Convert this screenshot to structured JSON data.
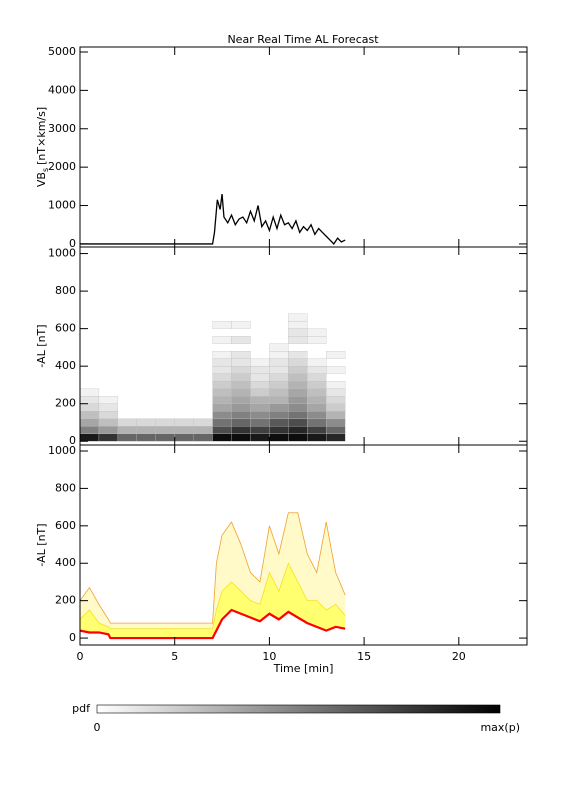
{
  "title": "Near Real Time AL Forecast",
  "chart_data": [
    {
      "type": "line",
      "ylabel": "VB",
      "ylabel_sub": "s",
      "ylabel_unit": "[nT×km/s]",
      "color": "#000000",
      "xlim": [
        0,
        23.6
      ],
      "xticks": [
        0,
        5,
        10,
        15,
        20
      ],
      "ylim": [
        -80,
        5130
      ],
      "yticks": [
        0,
        1000,
        2000,
        3000,
        4000,
        5000
      ],
      "x": [
        0,
        7.0,
        7.1,
        7.25,
        7.4,
        7.5,
        7.6,
        7.8,
        8.0,
        8.2,
        8.4,
        8.6,
        8.8,
        9.0,
        9.2,
        9.4,
        9.6,
        9.8,
        10.0,
        10.2,
        10.4,
        10.6,
        10.8,
        11.0,
        11.2,
        11.4,
        11.6,
        11.8,
        12.0,
        12.2,
        12.4,
        12.6,
        12.8,
        13.0,
        13.2,
        13.4,
        13.6,
        13.8,
        14.0
      ],
      "values": [
        0,
        0,
        300,
        1150,
        900,
        1300,
        700,
        550,
        750,
        500,
        650,
        700,
        550,
        850,
        600,
        1000,
        450,
        600,
        350,
        700,
        400,
        750,
        500,
        550,
        400,
        600,
        300,
        450,
        350,
        500,
        250,
        400,
        300,
        200,
        100,
        0,
        150,
        50,
        100
      ]
    },
    {
      "type": "heatmap",
      "ylabel": "-AL [nT]",
      "xlim": [
        0,
        23.6
      ],
      "xticks": [
        0,
        5,
        10,
        15,
        20
      ],
      "ylim": [
        -20,
        1035
      ],
      "yticks": [
        0,
        200,
        400,
        600,
        800,
        1000
      ],
      "cells": [
        [
          0,
          0,
          0.9
        ],
        [
          0,
          40,
          0.5
        ],
        [
          0,
          80,
          0.35
        ],
        [
          0,
          120,
          0.25
        ],
        [
          0,
          160,
          0.15
        ],
        [
          0,
          200,
          0.1
        ],
        [
          0,
          240,
          0.05
        ],
        [
          1,
          0,
          0.8
        ],
        [
          1,
          40,
          0.4
        ],
        [
          1,
          80,
          0.25
        ],
        [
          1,
          120,
          0.15
        ],
        [
          1,
          160,
          0.1
        ],
        [
          1,
          200,
          0.05
        ],
        [
          2,
          0,
          0.6
        ],
        [
          2,
          40,
          0.3
        ],
        [
          2,
          80,
          0.15
        ],
        [
          3,
          0,
          0.6
        ],
        [
          3,
          40,
          0.3
        ],
        [
          3,
          80,
          0.15
        ],
        [
          4,
          0,
          0.6
        ],
        [
          4,
          40,
          0.3
        ],
        [
          4,
          80,
          0.15
        ],
        [
          5,
          0,
          0.6
        ],
        [
          5,
          40,
          0.3
        ],
        [
          5,
          80,
          0.15
        ],
        [
          6,
          0,
          0.6
        ],
        [
          6,
          40,
          0.3
        ],
        [
          6,
          80,
          0.15
        ],
        [
          7,
          0,
          0.95
        ],
        [
          7,
          40,
          0.7
        ],
        [
          7,
          80,
          0.55
        ],
        [
          7,
          120,
          0.45
        ],
        [
          7,
          160,
          0.35
        ],
        [
          7,
          200,
          0.3
        ],
        [
          7,
          240,
          0.25
        ],
        [
          7,
          280,
          0.2
        ],
        [
          7,
          320,
          0.15
        ],
        [
          7,
          360,
          0.1
        ],
        [
          7,
          400,
          0.1
        ],
        [
          7,
          440,
          0.05
        ],
        [
          7,
          520,
          0.05
        ],
        [
          7,
          600,
          0.05
        ],
        [
          8,
          0,
          0.95
        ],
        [
          8,
          40,
          0.8
        ],
        [
          8,
          80,
          0.6
        ],
        [
          8,
          120,
          0.5
        ],
        [
          8,
          160,
          0.4
        ],
        [
          8,
          200,
          0.35
        ],
        [
          8,
          240,
          0.3
        ],
        [
          8,
          280,
          0.25
        ],
        [
          8,
          320,
          0.2
        ],
        [
          8,
          360,
          0.15
        ],
        [
          8,
          400,
          0.1
        ],
        [
          8,
          440,
          0.1
        ],
        [
          8,
          520,
          0.1
        ],
        [
          8,
          600,
          0.05
        ],
        [
          9,
          0,
          0.9
        ],
        [
          9,
          40,
          0.75
        ],
        [
          9,
          80,
          0.55
        ],
        [
          9,
          120,
          0.45
        ],
        [
          9,
          160,
          0.35
        ],
        [
          9,
          200,
          0.3
        ],
        [
          9,
          240,
          0.2
        ],
        [
          9,
          280,
          0.15
        ],
        [
          9,
          320,
          0.1
        ],
        [
          9,
          360,
          0.1
        ],
        [
          9,
          400,
          0.05
        ],
        [
          10,
          0,
          0.95
        ],
        [
          10,
          40,
          0.8
        ],
        [
          10,
          80,
          0.65
        ],
        [
          10,
          120,
          0.5
        ],
        [
          10,
          160,
          0.4
        ],
        [
          10,
          200,
          0.3
        ],
        [
          10,
          240,
          0.25
        ],
        [
          10,
          280,
          0.2
        ],
        [
          10,
          320,
          0.15
        ],
        [
          10,
          360,
          0.1
        ],
        [
          10,
          400,
          0.1
        ],
        [
          10,
          440,
          0.05
        ],
        [
          10,
          480,
          0.05
        ],
        [
          11,
          0,
          0.95
        ],
        [
          11,
          40,
          0.85
        ],
        [
          11,
          80,
          0.7
        ],
        [
          11,
          120,
          0.55
        ],
        [
          11,
          160,
          0.45
        ],
        [
          11,
          200,
          0.4
        ],
        [
          11,
          240,
          0.35
        ],
        [
          11,
          280,
          0.3
        ],
        [
          11,
          320,
          0.25
        ],
        [
          11,
          360,
          0.2
        ],
        [
          11,
          400,
          0.15
        ],
        [
          11,
          440,
          0.1
        ],
        [
          11,
          520,
          0.1
        ],
        [
          11,
          560,
          0.1
        ],
        [
          11,
          600,
          0.05
        ],
        [
          11,
          640,
          0.05
        ],
        [
          12,
          0,
          0.9
        ],
        [
          12,
          40,
          0.75
        ],
        [
          12,
          80,
          0.55
        ],
        [
          12,
          120,
          0.45
        ],
        [
          12,
          160,
          0.35
        ],
        [
          12,
          200,
          0.3
        ],
        [
          12,
          240,
          0.25
        ],
        [
          12,
          280,
          0.2
        ],
        [
          12,
          320,
          0.15
        ],
        [
          12,
          360,
          0.1
        ],
        [
          12,
          400,
          0.05
        ],
        [
          12,
          520,
          0.05
        ],
        [
          12,
          560,
          0.05
        ],
        [
          13,
          0,
          0.85
        ],
        [
          13,
          40,
          0.6
        ],
        [
          13,
          80,
          0.45
        ],
        [
          13,
          120,
          0.3
        ],
        [
          13,
          160,
          0.2
        ],
        [
          13,
          200,
          0.15
        ],
        [
          13,
          240,
          0.1
        ],
        [
          13,
          280,
          0.05
        ],
        [
          13,
          360,
          0.05
        ],
        [
          13,
          440,
          0.05
        ]
      ]
    },
    {
      "type": "band",
      "ylabel": "-AL [nT]",
      "xlabel": "Time [min]",
      "xlim": [
        0,
        23.6
      ],
      "xticks": [
        0,
        5,
        10,
        15,
        20
      ],
      "ylim": [
        -37,
        1032
      ],
      "yticks": [
        0,
        200,
        400,
        600,
        800,
        1000
      ],
      "x": [
        0,
        0.5,
        1,
        1.5,
        1.6,
        7.0,
        7.2,
        7.5,
        8,
        8.5,
        9,
        9.5,
        10,
        10.5,
        11,
        11.5,
        12,
        12.5,
        13,
        13.5,
        14
      ],
      "series": [
        {
          "color": "#f0a030",
          "values": [
            200,
            270,
            180,
            100,
            80,
            80,
            400,
            550,
            620,
            500,
            350,
            300,
            600,
            450,
            670,
            670,
            450,
            350,
            620,
            350,
            230
          ]
        },
        {
          "color": "#f7e020",
          "values": [
            100,
            150,
            80,
            60,
            50,
            50,
            150,
            250,
            300,
            250,
            200,
            180,
            350,
            250,
            400,
            300,
            200,
            200,
            150,
            180,
            120
          ]
        },
        {
          "color": "#ff0000",
          "values": [
            40,
            30,
            30,
            20,
            0,
            0,
            40,
            100,
            150,
            130,
            110,
            90,
            130,
            100,
            140,
            110,
            80,
            60,
            40,
            60,
            50
          ]
        }
      ]
    }
  ],
  "colorbar": {
    "label": "pdf",
    "min_label": "0",
    "max_label": "max(p)"
  }
}
